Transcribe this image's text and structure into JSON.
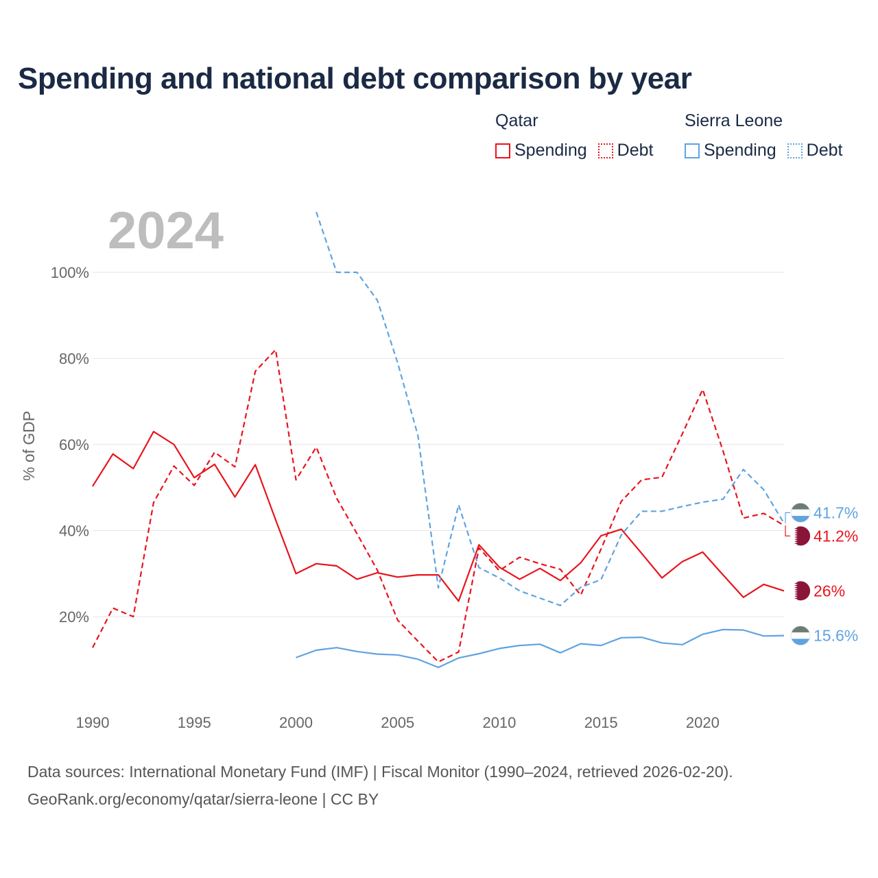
{
  "title": "Spending and national debt comparison by year",
  "legend": {
    "groups": [
      {
        "name": "Qatar",
        "spending_label": "Spending",
        "debt_label": "Debt",
        "color": "#e8141c"
      },
      {
        "name": "Sierra Leone",
        "spending_label": "Spending",
        "debt_label": "Debt",
        "color": "#5fa3e0"
      }
    ]
  },
  "source": {
    "line1": "Data sources: International Monetary Fund (IMF) | Fiscal Monitor (1990–2024, retrieved 2026-02-20).",
    "line2": "GeoRank.org/economy/qatar/sierra-leone | CC BY"
  },
  "chart_data": {
    "type": "line",
    "year_label": "2024",
    "ylabel": "% of GDP",
    "xlim": [
      1990,
      2024
    ],
    "ylim": [
      0,
      115
    ],
    "x_ticks": [
      1990,
      1995,
      2000,
      2005,
      2010,
      2015,
      2020
    ],
    "y_ticks": [
      20,
      40,
      60,
      80,
      100
    ],
    "y_tick_labels": [
      "20%",
      "40%",
      "60%",
      "80%",
      "100%"
    ],
    "series": [
      {
        "name": "Qatar Spending",
        "country": "Qatar",
        "kind": "spending",
        "style": "solid",
        "color": "#e8141c",
        "end_label": "26%",
        "flag": "qatar",
        "points": [
          [
            1990,
            50.3
          ],
          [
            1991,
            57.8
          ],
          [
            1992,
            54.4
          ],
          [
            1993,
            63.0
          ],
          [
            1994,
            60.0
          ],
          [
            1995,
            52.3
          ],
          [
            1996,
            55.4
          ],
          [
            1997,
            47.8
          ],
          [
            1998,
            55.3
          ],
          [
            1999,
            42.5
          ],
          [
            2000,
            30.0
          ],
          [
            2001,
            32.3
          ],
          [
            2002,
            31.8
          ],
          [
            2003,
            28.7
          ],
          [
            2004,
            30.2
          ],
          [
            2005,
            29.2
          ],
          [
            2006,
            29.7
          ],
          [
            2007,
            29.7
          ],
          [
            2008,
            23.6
          ],
          [
            2009,
            36.7
          ],
          [
            2010,
            31.5
          ],
          [
            2011,
            28.7
          ],
          [
            2012,
            31.2
          ],
          [
            2013,
            28.4
          ],
          [
            2014,
            32.5
          ],
          [
            2015,
            38.8
          ],
          [
            2016,
            40.3
          ],
          [
            2017,
            34.7
          ],
          [
            2018,
            29.0
          ],
          [
            2019,
            32.8
          ],
          [
            2020,
            35.0
          ],
          [
            2021,
            29.7
          ],
          [
            2022,
            24.5
          ],
          [
            2023,
            27.5
          ],
          [
            2024,
            26.0
          ]
        ]
      },
      {
        "name": "Qatar Debt",
        "country": "Qatar",
        "kind": "debt",
        "style": "dashed",
        "color": "#e8141c",
        "end_label": "41.2%",
        "flag": "qatar",
        "points": [
          [
            1990,
            12.8
          ],
          [
            1991,
            22.0
          ],
          [
            1992,
            20.0
          ],
          [
            1993,
            46.5
          ],
          [
            1994,
            55.0
          ],
          [
            1995,
            50.5
          ],
          [
            1996,
            58.2
          ],
          [
            1997,
            54.8
          ],
          [
            1998,
            77.0
          ],
          [
            1999,
            82.0
          ],
          [
            2000,
            51.8
          ],
          [
            2001,
            59.4
          ],
          [
            2002,
            47.5
          ],
          [
            2003,
            39.3
          ],
          [
            2004,
            30.8
          ],
          [
            2005,
            19.2
          ],
          [
            2006,
            14.3
          ],
          [
            2007,
            9.5
          ],
          [
            2008,
            11.8
          ],
          [
            2009,
            36.0
          ],
          [
            2010,
            30.7
          ],
          [
            2011,
            33.8
          ],
          [
            2012,
            32.3
          ],
          [
            2013,
            31.0
          ],
          [
            2014,
            25.0
          ],
          [
            2015,
            35.7
          ],
          [
            2016,
            46.8
          ],
          [
            2017,
            51.8
          ],
          [
            2018,
            52.4
          ],
          [
            2019,
            62.5
          ],
          [
            2020,
            72.8
          ],
          [
            2021,
            58.5
          ],
          [
            2022,
            42.9
          ],
          [
            2023,
            44.0
          ],
          [
            2024,
            41.2
          ]
        ]
      },
      {
        "name": "Sierra Leone Spending",
        "country": "Sierra Leone",
        "kind": "spending",
        "style": "solid",
        "color": "#5fa3e0",
        "end_label": "15.6%",
        "flag": "sierra-leone",
        "points": [
          [
            2000,
            10.5
          ],
          [
            2001,
            12.2
          ],
          [
            2002,
            12.8
          ],
          [
            2003,
            11.9
          ],
          [
            2004,
            11.3
          ],
          [
            2005,
            11.1
          ],
          [
            2006,
            10.1
          ],
          [
            2007,
            8.2
          ],
          [
            2008,
            10.4
          ],
          [
            2009,
            11.4
          ],
          [
            2010,
            12.6
          ],
          [
            2011,
            13.3
          ],
          [
            2012,
            13.6
          ],
          [
            2013,
            11.6
          ],
          [
            2014,
            13.7
          ],
          [
            2015,
            13.3
          ],
          [
            2016,
            15.1
          ],
          [
            2017,
            15.2
          ],
          [
            2018,
            13.9
          ],
          [
            2019,
            13.5
          ],
          [
            2020,
            15.9
          ],
          [
            2021,
            17.0
          ],
          [
            2022,
            16.9
          ],
          [
            2023,
            15.5
          ],
          [
            2024,
            15.6
          ]
        ]
      },
      {
        "name": "Sierra Leone Debt",
        "country": "Sierra Leone",
        "kind": "debt",
        "style": "dashed",
        "color": "#5fa3e0",
        "end_label": "41.7%",
        "flag": "sierra-leone",
        "points": [
          [
            2001,
            114.0
          ],
          [
            2002,
            100.0
          ],
          [
            2003,
            100.0
          ],
          [
            2004,
            93.5
          ],
          [
            2005,
            79.0
          ],
          [
            2006,
            62.0
          ],
          [
            2007,
            26.7
          ],
          [
            2008,
            46.0
          ],
          [
            2009,
            31.4
          ],
          [
            2010,
            29.0
          ],
          [
            2011,
            26.0
          ],
          [
            2012,
            24.3
          ],
          [
            2013,
            22.6
          ],
          [
            2014,
            26.8
          ],
          [
            2015,
            28.6
          ],
          [
            2016,
            39.0
          ],
          [
            2017,
            44.5
          ],
          [
            2018,
            44.5
          ],
          [
            2019,
            45.6
          ],
          [
            2020,
            46.6
          ],
          [
            2021,
            47.3
          ],
          [
            2022,
            54.2
          ],
          [
            2023,
            49.5
          ],
          [
            2024,
            41.7
          ]
        ]
      }
    ]
  }
}
